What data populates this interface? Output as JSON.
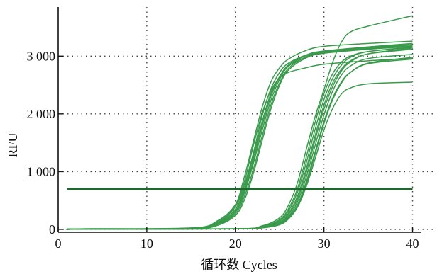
{
  "chart_data": {
    "type": "line",
    "title": "",
    "xlabel": "循环数 Cycles",
    "ylabel": "RFU",
    "xlim": [
      0,
      41
    ],
    "ylim": [
      -50,
      3850
    ],
    "x_ticks": [
      0,
      10,
      20,
      30,
      40
    ],
    "y_ticks": [
      0,
      1000,
      2000,
      3000
    ],
    "x_tick_labels": [
      "0",
      "10",
      "20",
      "30",
      "40"
    ],
    "y_tick_labels": [
      "0",
      "1 000",
      "2 000",
      "3 000"
    ],
    "grid": "dotted",
    "threshold": {
      "value": 700,
      "x_range": [
        1,
        40
      ],
      "color": "#1e6a2e"
    },
    "colors": {
      "curve": "#3a9a4c",
      "threshold": "#1e6a2e",
      "grid": "#444444",
      "axis": "#111111"
    },
    "series": [
      {
        "values": [
          [
            1,
            0
          ],
          [
            3,
            10
          ],
          [
            15,
            22
          ],
          [
            18,
            150
          ],
          [
            20,
            430
          ],
          [
            21,
            900
          ],
          [
            22,
            1500
          ],
          [
            23,
            2100
          ],
          [
            24,
            2550
          ],
          [
            25,
            2800
          ],
          [
            26,
            2950
          ],
          [
            28,
            3100
          ],
          [
            30,
            3170
          ],
          [
            35,
            3220
          ],
          [
            40,
            3260
          ]
        ]
      },
      {
        "values": [
          [
            1,
            0
          ],
          [
            3,
            10
          ],
          [
            15,
            25
          ],
          [
            18,
            120
          ],
          [
            20,
            390
          ],
          [
            21,
            760
          ],
          [
            22,
            1300
          ],
          [
            23,
            1950
          ],
          [
            24,
            2430
          ],
          [
            25,
            2720
          ],
          [
            26,
            2880
          ],
          [
            28,
            3020
          ],
          [
            30,
            3080
          ],
          [
            35,
            3150
          ],
          [
            40,
            3200
          ]
        ]
      },
      {
        "values": [
          [
            1,
            0
          ],
          [
            3,
            5
          ],
          [
            15,
            20
          ],
          [
            18,
            140
          ],
          [
            20,
            420
          ],
          [
            21,
            820
          ],
          [
            22,
            1430
          ],
          [
            23,
            2000
          ],
          [
            24,
            2400
          ],
          [
            25,
            2620
          ],
          [
            26,
            2720
          ],
          [
            28,
            2800
          ],
          [
            30,
            2860
          ],
          [
            35,
            2920
          ],
          [
            40,
            2960
          ]
        ]
      },
      {
        "values": [
          [
            1,
            0
          ],
          [
            3,
            5
          ],
          [
            15,
            15
          ],
          [
            18,
            110
          ],
          [
            20,
            350
          ],
          [
            21,
            700
          ],
          [
            22,
            1250
          ],
          [
            23,
            1850
          ],
          [
            24,
            2350
          ],
          [
            25,
            2650
          ],
          [
            26,
            2830
          ],
          [
            28,
            2980
          ],
          [
            30,
            3050
          ],
          [
            35,
            3120
          ],
          [
            40,
            3170
          ]
        ]
      },
      {
        "values": [
          [
            1,
            0
          ],
          [
            3,
            5
          ],
          [
            15,
            15
          ],
          [
            18,
            100
          ],
          [
            20,
            320
          ],
          [
            21,
            650
          ],
          [
            22,
            1180
          ],
          [
            23,
            1780
          ],
          [
            24,
            2300
          ],
          [
            25,
            2640
          ],
          [
            26,
            2850
          ],
          [
            28,
            3020
          ],
          [
            30,
            3090
          ],
          [
            35,
            3160
          ],
          [
            40,
            3220
          ]
        ]
      },
      {
        "values": [
          [
            1,
            0
          ],
          [
            3,
            5
          ],
          [
            15,
            12
          ],
          [
            18,
            90
          ],
          [
            20,
            300
          ],
          [
            21,
            620
          ],
          [
            22,
            1120
          ],
          [
            23,
            1700
          ],
          [
            24,
            2230
          ],
          [
            25,
            2600
          ],
          [
            26,
            2830
          ],
          [
            28,
            3010
          ],
          [
            30,
            3080
          ],
          [
            35,
            3150
          ],
          [
            40,
            3200
          ]
        ]
      },
      {
        "values": [
          [
            1,
            0
          ],
          [
            3,
            5
          ],
          [
            15,
            10
          ],
          [
            18,
            80
          ],
          [
            20,
            270
          ],
          [
            21,
            560
          ],
          [
            22,
            1020
          ],
          [
            23,
            1600
          ],
          [
            24,
            2150
          ],
          [
            25,
            2540
          ],
          [
            26,
            2790
          ],
          [
            28,
            2990
          ],
          [
            30,
            3070
          ],
          [
            35,
            3140
          ],
          [
            40,
            3180
          ]
        ]
      },
      {
        "values": [
          [
            1,
            0
          ],
          [
            3,
            5
          ],
          [
            15,
            10
          ],
          [
            18,
            70
          ],
          [
            20,
            240
          ],
          [
            21,
            500
          ],
          [
            22,
            950
          ],
          [
            23,
            1520
          ],
          [
            24,
            2080
          ],
          [
            25,
            2500
          ],
          [
            26,
            2760
          ],
          [
            28,
            2970
          ],
          [
            30,
            3060
          ],
          [
            35,
            3130
          ],
          [
            40,
            3170
          ]
        ]
      },
      {
        "values": [
          [
            1,
            0
          ],
          [
            3,
            5
          ],
          [
            20,
            10
          ],
          [
            23,
            60
          ],
          [
            25,
            200
          ],
          [
            26,
            420
          ],
          [
            27,
            800
          ],
          [
            28,
            1380
          ],
          [
            29,
            1950
          ],
          [
            30,
            2420
          ],
          [
            31,
            2900
          ],
          [
            32,
            3250
          ],
          [
            33,
            3420
          ],
          [
            35,
            3520
          ],
          [
            40,
            3700
          ]
        ]
      },
      {
        "values": [
          [
            1,
            0
          ],
          [
            3,
            5
          ],
          [
            20,
            10
          ],
          [
            23,
            50
          ],
          [
            25,
            170
          ],
          [
            26,
            360
          ],
          [
            27,
            700
          ],
          [
            28,
            1250
          ],
          [
            29,
            1850
          ],
          [
            30,
            2350
          ],
          [
            31,
            2700
          ],
          [
            32,
            2900
          ],
          [
            33,
            3000
          ],
          [
            35,
            3080
          ],
          [
            40,
            3160
          ]
        ]
      },
      {
        "values": [
          [
            1,
            0
          ],
          [
            3,
            5
          ],
          [
            20,
            10
          ],
          [
            23,
            45
          ],
          [
            25,
            150
          ],
          [
            26,
            320
          ],
          [
            27,
            640
          ],
          [
            28,
            1150
          ],
          [
            29,
            1730
          ],
          [
            30,
            2250
          ],
          [
            31,
            2620
          ],
          [
            32,
            2850
          ],
          [
            33,
            2980
          ],
          [
            35,
            3080
          ],
          [
            40,
            3150
          ]
        ]
      },
      {
        "values": [
          [
            1,
            0
          ],
          [
            3,
            5
          ],
          [
            20,
            10
          ],
          [
            23,
            40
          ],
          [
            25,
            130
          ],
          [
            26,
            280
          ],
          [
            27,
            570
          ],
          [
            28,
            1050
          ],
          [
            29,
            1620
          ],
          [
            30,
            2150
          ],
          [
            31,
            2540
          ],
          [
            32,
            2780
          ],
          [
            33,
            2920
          ],
          [
            35,
            3040
          ],
          [
            40,
            3120
          ]
        ]
      },
      {
        "values": [
          [
            1,
            0
          ],
          [
            3,
            5
          ],
          [
            20,
            10
          ],
          [
            23,
            35
          ],
          [
            25,
            110
          ],
          [
            26,
            250
          ],
          [
            27,
            520
          ],
          [
            28,
            980
          ],
          [
            29,
            1550
          ],
          [
            30,
            2080
          ],
          [
            31,
            2480
          ],
          [
            32,
            2750
          ],
          [
            33,
            2900
          ],
          [
            35,
            3040
          ],
          [
            40,
            3140
          ]
        ]
      },
      {
        "values": [
          [
            1,
            0
          ],
          [
            3,
            5
          ],
          [
            20,
            8
          ],
          [
            23,
            30
          ],
          [
            25,
            100
          ],
          [
            26,
            220
          ],
          [
            27,
            470
          ],
          [
            28,
            900
          ],
          [
            29,
            1450
          ],
          [
            30,
            1980
          ],
          [
            31,
            2400
          ],
          [
            32,
            2680
          ],
          [
            33,
            2830
          ],
          [
            35,
            2960
          ],
          [
            40,
            3030
          ]
        ]
      },
      {
        "values": [
          [
            1,
            0
          ],
          [
            3,
            5
          ],
          [
            20,
            8
          ],
          [
            23,
            30
          ],
          [
            25,
            90
          ],
          [
            26,
            200
          ],
          [
            27,
            420
          ],
          [
            28,
            820
          ],
          [
            29,
            1340
          ],
          [
            30,
            1870
          ],
          [
            31,
            2280
          ],
          [
            32,
            2560
          ],
          [
            33,
            2720
          ],
          [
            35,
            2870
          ],
          [
            40,
            2950
          ]
        ]
      },
      {
        "values": [
          [
            1,
            0
          ],
          [
            3,
            5
          ],
          [
            20,
            8
          ],
          [
            23,
            25
          ],
          [
            25,
            80
          ],
          [
            26,
            180
          ],
          [
            27,
            380
          ],
          [
            28,
            740
          ],
          [
            29,
            1220
          ],
          [
            30,
            1720
          ],
          [
            31,
            2100
          ],
          [
            32,
            2350
          ],
          [
            33,
            2450
          ],
          [
            35,
            2520
          ],
          [
            40,
            2550
          ]
        ]
      },
      {
        "values": [
          [
            1,
            0
          ],
          [
            3,
            5
          ],
          [
            20,
            8
          ],
          [
            23,
            25
          ],
          [
            25,
            85
          ],
          [
            26,
            190
          ],
          [
            27,
            400
          ],
          [
            28,
            780
          ],
          [
            29,
            1300
          ],
          [
            30,
            1830
          ],
          [
            31,
            2250
          ],
          [
            32,
            2540
          ],
          [
            33,
            2720
          ],
          [
            35,
            2880
          ],
          [
            40,
            2980
          ]
        ]
      }
    ]
  }
}
